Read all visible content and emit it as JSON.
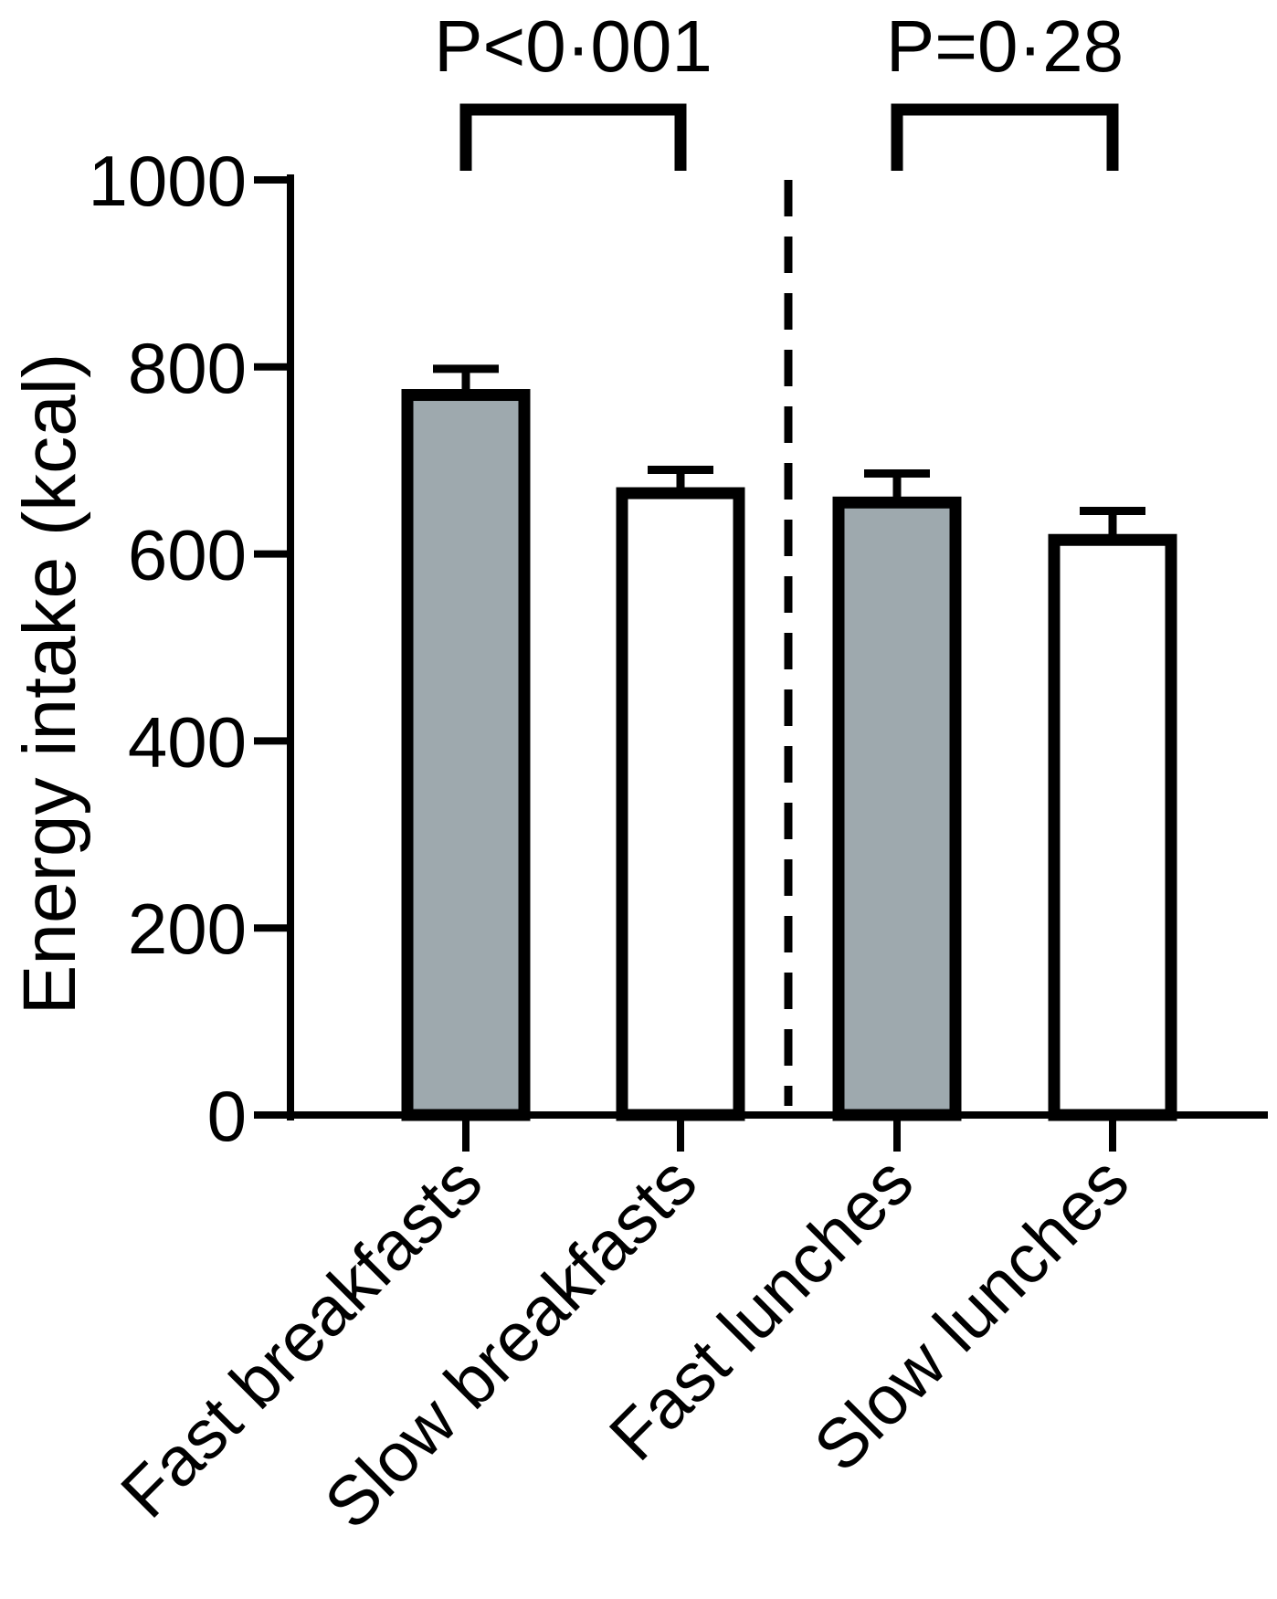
{
  "chart_data": {
    "type": "bar",
    "title": "",
    "xlabel": "",
    "ylabel": "Energy intake (kcal)",
    "ylim": [
      0,
      1000
    ],
    "yticks": [
      0,
      200,
      400,
      600,
      800,
      1000
    ],
    "ytick_labels": [
      "0",
      "200",
      "400",
      "600",
      "800",
      "1000"
    ],
    "grid": false,
    "categories": [
      "Fast breakfasts",
      "Slow breakfasts",
      "Fast lunches",
      "Slow lunches"
    ],
    "values": [
      770,
      665,
      655,
      615
    ],
    "error_upper": [
      798,
      690,
      686,
      646
    ],
    "bar_fills": [
      "#9EA9AE",
      "#FFFFFF",
      "#9EA9AE",
      "#FFFFFF"
    ],
    "divider": "dashed vertical line between Slow breakfasts and Fast lunches",
    "comparisons": [
      {
        "from": 0,
        "to": 1,
        "label": "P<0·001"
      },
      {
        "from": 2,
        "to": 3,
        "label": "P=0·28"
      }
    ]
  }
}
